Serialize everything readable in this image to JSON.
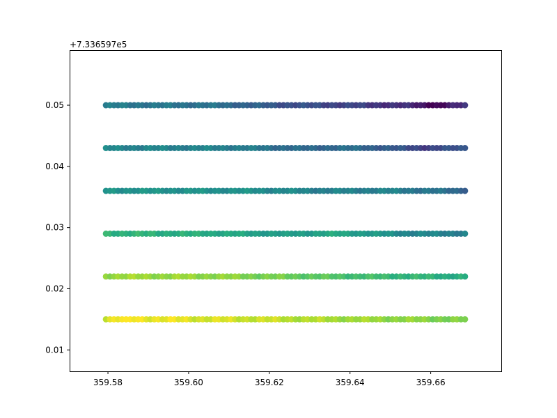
{
  "chart_data": {
    "type": "scatter",
    "title": "",
    "xlabel": "",
    "ylabel": "",
    "y_offset_text": "+7.336597e5",
    "xlim": [
      359.5705,
      359.6775
    ],
    "ylim": [
      0.0065,
      0.059
    ],
    "xticks": [
      {
        "value": 359.58,
        "label": "359.58"
      },
      {
        "value": 359.6,
        "label": "359.60"
      },
      {
        "value": 359.62,
        "label": "359.62"
      },
      {
        "value": 359.64,
        "label": "359.64"
      },
      {
        "value": 359.66,
        "label": "359.66"
      }
    ],
    "yticks": [
      {
        "value": 0.01,
        "label": "0.01"
      },
      {
        "value": 0.02,
        "label": "0.02"
      },
      {
        "value": 0.03,
        "label": "0.03"
      },
      {
        "value": 0.04,
        "label": "0.04"
      },
      {
        "value": 0.05,
        "label": "0.05"
      }
    ],
    "colormap": "viridis",
    "grid": false,
    "legend": "none",
    "x_start": 359.5795,
    "x_end": 359.6685,
    "points_per_row": 90,
    "rows": [
      {
        "y": 0.05,
        "color_keypoints": [
          [
            0,
            0.42
          ],
          [
            0.3,
            0.38
          ],
          [
            0.5,
            0.26
          ],
          [
            0.7,
            0.2
          ],
          [
            0.85,
            0.12
          ],
          [
            0.93,
            0.0
          ],
          [
            1,
            0.16
          ]
        ]
      },
      {
        "y": 0.043,
        "color_keypoints": [
          [
            0,
            0.46
          ],
          [
            0.35,
            0.44
          ],
          [
            0.55,
            0.34
          ],
          [
            0.7,
            0.36
          ],
          [
            0.9,
            0.2
          ],
          [
            1,
            0.28
          ]
        ]
      },
      {
        "y": 0.036,
        "color_keypoints": [
          [
            0,
            0.52
          ],
          [
            0.4,
            0.5
          ],
          [
            0.6,
            0.44
          ],
          [
            0.8,
            0.44
          ],
          [
            1,
            0.34
          ]
        ]
      },
      {
        "y": 0.029,
        "color_keypoints": [
          [
            0,
            0.66
          ],
          [
            0.3,
            0.62
          ],
          [
            0.5,
            0.54
          ],
          [
            0.65,
            0.6
          ],
          [
            0.85,
            0.46
          ],
          [
            1,
            0.44
          ]
        ]
      },
      {
        "y": 0.022,
        "color_keypoints": [
          [
            0,
            0.86
          ],
          [
            0.3,
            0.84
          ],
          [
            0.5,
            0.78
          ],
          [
            0.7,
            0.7
          ],
          [
            1,
            0.62
          ]
        ]
      },
      {
        "y": 0.015,
        "color_keypoints": [
          [
            0,
            0.95
          ],
          [
            0.05,
            1.0
          ],
          [
            0.25,
            0.95
          ],
          [
            0.45,
            0.92
          ],
          [
            0.6,
            0.88
          ],
          [
            1,
            0.8
          ]
        ]
      }
    ]
  }
}
